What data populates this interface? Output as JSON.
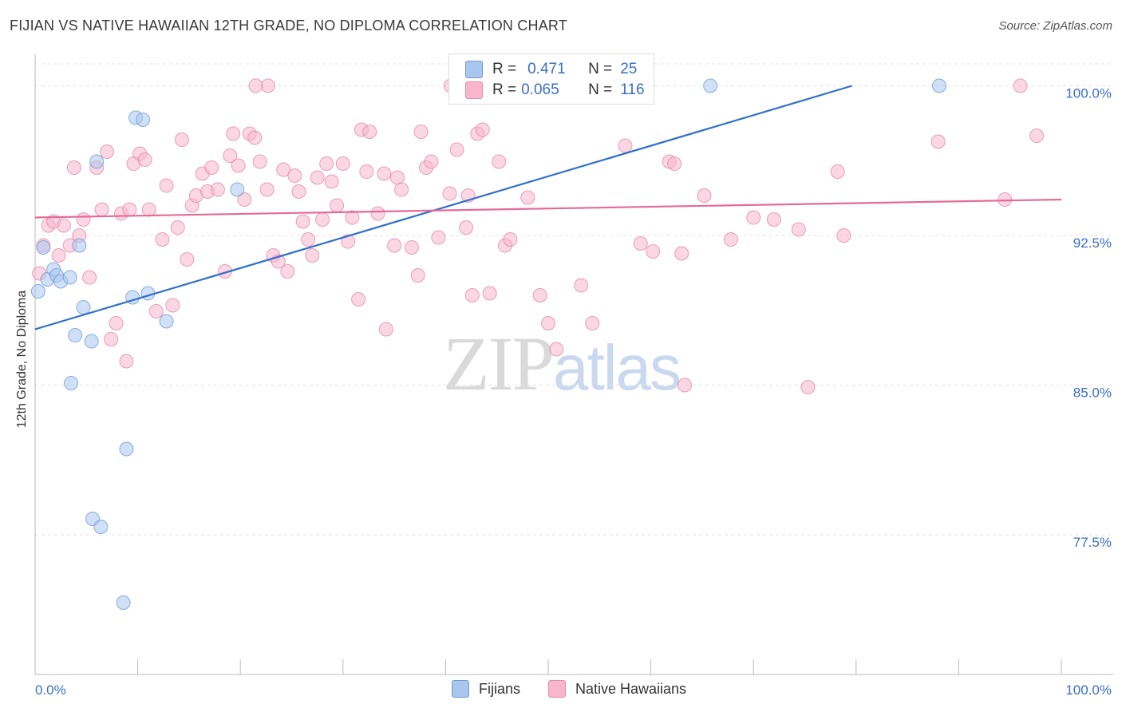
{
  "title": "FIJIAN VS NATIVE HAWAIIAN 12TH GRADE, NO DIPLOMA CORRELATION CHART",
  "source": "Source: ZipAtlas.com",
  "watermark": {
    "part1": "ZIP",
    "part2": "atlas"
  },
  "legend_top": {
    "rows": [
      {
        "r_label": "R =",
        "r_value": "0.471",
        "n_label": "N =",
        "n_value": "25",
        "color": "#a9c6ef"
      },
      {
        "r_label": "R =",
        "r_value": "0.065",
        "n_label": "N =",
        "n_value": "116",
        "color": "#f7b6cc"
      }
    ]
  },
  "legend_bottom": {
    "items": [
      {
        "label": "Fijians",
        "color": "#a9c6ef"
      },
      {
        "label": "Native Hawaiians",
        "color": "#f7b6cc"
      }
    ]
  },
  "chart_data": {
    "type": "scatter",
    "title": "FIJIAN VS NATIVE HAWAIIAN 12TH GRADE, NO DIPLOMA CORRELATION CHART",
    "xlabel": "",
    "ylabel": "12th Grade, No Diploma",
    "xlim": [
      0,
      100
    ],
    "ylim": [
      70.5,
      101.1
    ],
    "x_tick_labels": [
      "0.0%",
      "100.0%"
    ],
    "y_ticks": [
      77.5,
      85.0,
      92.5,
      100.0
    ],
    "y_tick_labels": [
      "77.5%",
      "85.0%",
      "92.5%",
      "100.0%"
    ],
    "grid": true,
    "series": [
      {
        "name": "Fijians",
        "color": "#a9c6ef",
        "stroke": "#6f9bd6",
        "trend": {
          "x0": 0,
          "y0": 87.8,
          "x1": 79.6,
          "y1": 100.0,
          "color": "#2f6fce"
        },
        "points": [
          [
            0.3,
            89.7
          ],
          [
            0.8,
            91.9
          ],
          [
            1.2,
            90.3
          ],
          [
            1.8,
            90.8
          ],
          [
            2.1,
            90.5
          ],
          [
            2.5,
            90.2
          ],
          [
            3.4,
            90.4
          ],
          [
            3.5,
            85.1
          ],
          [
            3.9,
            87.5
          ],
          [
            4.3,
            92.0
          ],
          [
            4.7,
            88.9
          ],
          [
            5.5,
            87.2
          ],
          [
            5.6,
            78.3
          ],
          [
            6.4,
            77.9
          ],
          [
            6.0,
            96.2
          ],
          [
            8.6,
            74.1
          ],
          [
            8.9,
            81.8
          ],
          [
            9.5,
            89.4
          ],
          [
            9.8,
            98.4
          ],
          [
            10.5,
            98.3
          ],
          [
            11.0,
            89.6
          ],
          [
            12.8,
            88.2
          ],
          [
            19.7,
            94.8
          ],
          [
            65.8,
            100.0
          ],
          [
            88.1,
            100.0
          ]
        ]
      },
      {
        "name": "Native Hawaiians",
        "color": "#f7b6cc",
        "stroke": "#e48aaa",
        "trend": {
          "x0": 0,
          "y0": 93.4,
          "x1": 100,
          "y1": 94.3,
          "color": "#e36b97"
        },
        "points": [
          [
            0.4,
            90.6
          ],
          [
            0.8,
            92.0
          ],
          [
            1.3,
            93.0
          ],
          [
            1.8,
            93.2
          ],
          [
            2.3,
            91.5
          ],
          [
            2.8,
            93.0
          ],
          [
            3.4,
            92.0
          ],
          [
            3.8,
            95.9
          ],
          [
            4.3,
            92.5
          ],
          [
            4.7,
            93.3
          ],
          [
            5.3,
            90.4
          ],
          [
            6.0,
            95.9
          ],
          [
            6.5,
            93.8
          ],
          [
            7.0,
            96.7
          ],
          [
            7.4,
            87.3
          ],
          [
            7.9,
            88.1
          ],
          [
            8.4,
            93.6
          ],
          [
            8.9,
            86.2
          ],
          [
            9.2,
            93.8
          ],
          [
            9.6,
            96.1
          ],
          [
            10.2,
            96.6
          ],
          [
            10.7,
            96.3
          ],
          [
            11.1,
            93.8
          ],
          [
            11.8,
            88.7
          ],
          [
            12.4,
            92.3
          ],
          [
            12.8,
            95.0
          ],
          [
            13.4,
            89.0
          ],
          [
            13.9,
            92.9
          ],
          [
            14.3,
            97.3
          ],
          [
            14.8,
            91.3
          ],
          [
            15.3,
            94.0
          ],
          [
            15.7,
            94.5
          ],
          [
            16.3,
            95.6
          ],
          [
            16.8,
            94.7
          ],
          [
            17.2,
            95.9
          ],
          [
            17.8,
            94.8
          ],
          [
            18.5,
            90.7
          ],
          [
            19.0,
            96.5
          ],
          [
            19.3,
            97.6
          ],
          [
            19.8,
            96.0
          ],
          [
            20.4,
            94.3
          ],
          [
            20.9,
            97.6
          ],
          [
            21.4,
            97.4
          ],
          [
            21.9,
            96.2
          ],
          [
            22.6,
            94.8
          ],
          [
            23.2,
            91.5
          ],
          [
            23.7,
            91.2
          ],
          [
            24.2,
            95.8
          ],
          [
            24.6,
            90.7
          ],
          [
            25.3,
            95.5
          ],
          [
            25.7,
            94.7
          ],
          [
            26.1,
            93.2
          ],
          [
            26.6,
            92.3
          ],
          [
            27.0,
            91.5
          ],
          [
            27.5,
            95.4
          ],
          [
            28.0,
            93.3
          ],
          [
            28.4,
            96.1
          ],
          [
            28.9,
            95.2
          ],
          [
            29.4,
            94.0
          ],
          [
            30.0,
            96.1
          ],
          [
            30.5,
            92.2
          ],
          [
            30.9,
            93.4
          ],
          [
            31.5,
            89.3
          ],
          [
            31.8,
            97.8
          ],
          [
            32.3,
            95.7
          ],
          [
            32.6,
            97.7
          ],
          [
            33.4,
            93.6
          ],
          [
            34.0,
            95.6
          ],
          [
            34.2,
            87.8
          ],
          [
            35.0,
            92.0
          ],
          [
            35.3,
            95.4
          ],
          [
            35.7,
            94.8
          ],
          [
            36.7,
            91.9
          ],
          [
            37.3,
            90.5
          ],
          [
            37.6,
            97.7
          ],
          [
            38.1,
            95.9
          ],
          [
            38.6,
            96.2
          ],
          [
            39.3,
            92.4
          ],
          [
            40.4,
            94.6
          ],
          [
            41.1,
            96.8
          ],
          [
            42.0,
            92.9
          ],
          [
            42.2,
            94.5
          ],
          [
            42.6,
            89.5
          ],
          [
            43.1,
            97.6
          ],
          [
            43.6,
            97.8
          ],
          [
            44.3,
            89.6
          ],
          [
            45.2,
            96.2
          ],
          [
            45.8,
            92.0
          ],
          [
            46.3,
            92.3
          ],
          [
            48.0,
            94.4
          ],
          [
            49.2,
            89.5
          ],
          [
            50.0,
            88.1
          ],
          [
            50.8,
            86.8
          ],
          [
            53.2,
            90.0
          ],
          [
            54.3,
            88.1
          ],
          [
            57.5,
            97.0
          ],
          [
            59.0,
            92.1
          ],
          [
            60.2,
            91.7
          ],
          [
            61.8,
            96.2
          ],
          [
            63.0,
            91.6
          ],
          [
            63.3,
            85.0
          ],
          [
            65.2,
            94.5
          ],
          [
            67.8,
            92.3
          ],
          [
            70.0,
            93.4
          ],
          [
            72.0,
            93.3
          ],
          [
            74.4,
            92.8
          ],
          [
            75.3,
            84.9
          ],
          [
            78.2,
            95.7
          ],
          [
            78.8,
            92.5
          ],
          [
            88.0,
            97.2
          ],
          [
            96.0,
            100.0
          ],
          [
            22.7,
            100.0
          ],
          [
            21.5,
            100.0
          ],
          [
            40.5,
            100.0
          ],
          [
            59.3,
            100.0
          ],
          [
            97.6,
            97.5
          ],
          [
            62.3,
            96.1
          ],
          [
            94.5,
            94.3
          ]
        ]
      }
    ]
  }
}
